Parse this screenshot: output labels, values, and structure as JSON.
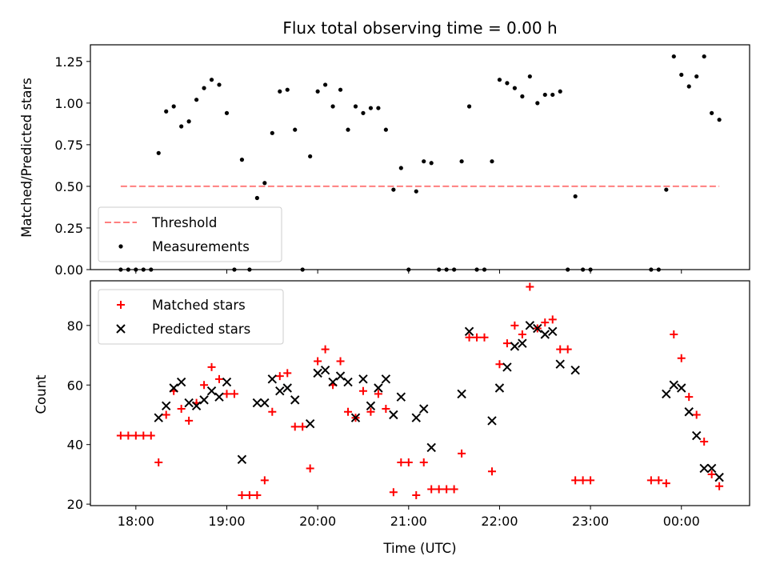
{
  "chart_data": [
    {
      "type": "scatter",
      "title": "Flux total observing time = 0.00 h",
      "xlabel": "",
      "ylabel": "Matched/Predicted stars",
      "ylim": [
        0,
        1.35
      ],
      "yticks": [
        0,
        0.25,
        0.5,
        0.75,
        1.0,
        1.25
      ],
      "ytick_labels": [
        "0.00",
        "0.25",
        "0.50",
        "0.75",
        "1.00",
        "1.25"
      ],
      "xlim": [
        "17:30",
        "00:45"
      ],
      "x_unit": "time of day (UTC), HH:MM",
      "xticks": [
        "18:00",
        "19:00",
        "20:00",
        "21:00",
        "22:00",
        "23:00",
        "00:00"
      ],
      "legend_position": "lower-left",
      "threshold": {
        "name": "Threshold",
        "value": 0.5,
        "x_range": [
          "17:50",
          "00:25"
        ],
        "color": "#ff7f7f",
        "style": "dashed"
      },
      "series": [
        {
          "name": "Measurements",
          "color": "#000000",
          "points": [
            [
              "17:50",
              0
            ],
            [
              "17:55",
              0
            ],
            [
              "18:00",
              0
            ],
            [
              "18:05",
              0
            ],
            [
              "18:10",
              0
            ],
            [
              "18:15",
              0.7
            ],
            [
              "18:20",
              0.95
            ],
            [
              "18:25",
              0.98
            ],
            [
              "18:30",
              0.86
            ],
            [
              "18:35",
              0.89
            ],
            [
              "18:40",
              1.02
            ],
            [
              "18:45",
              1.09
            ],
            [
              "18:50",
              1.14
            ],
            [
              "18:55",
              1.11
            ],
            [
              "19:00",
              0.94
            ],
            [
              "19:05",
              0
            ],
            [
              "19:10",
              0.66
            ],
            [
              "19:15",
              0
            ],
            [
              "19:20",
              0.43
            ],
            [
              "19:25",
              0.52
            ],
            [
              "19:30",
              0.82
            ],
            [
              "19:35",
              1.07
            ],
            [
              "19:40",
              1.08
            ],
            [
              "19:45",
              0.84
            ],
            [
              "19:50",
              0
            ],
            [
              "19:55",
              0.68
            ],
            [
              "20:00",
              1.07
            ],
            [
              "20:05",
              1.11
            ],
            [
              "20:10",
              0.98
            ],
            [
              "20:15",
              1.08
            ],
            [
              "20:20",
              0.84
            ],
            [
              "20:25",
              0.98
            ],
            [
              "20:30",
              0.94
            ],
            [
              "20:35",
              0.97
            ],
            [
              "20:40",
              0.97
            ],
            [
              "20:45",
              0.84
            ],
            [
              "20:50",
              0.48
            ],
            [
              "20:55",
              0.61
            ],
            [
              "21:00",
              0
            ],
            [
              "21:05",
              0.47
            ],
            [
              "21:10",
              0.65
            ],
            [
              "21:15",
              0.64
            ],
            [
              "21:20",
              0
            ],
            [
              "21:25",
              0
            ],
            [
              "21:30",
              0
            ],
            [
              "21:35",
              0.65
            ],
            [
              "21:40",
              0.98
            ],
            [
              "21:45",
              0
            ],
            [
              "21:50",
              0
            ],
            [
              "21:55",
              0.65
            ],
            [
              "22:00",
              1.14
            ],
            [
              "22:05",
              1.12
            ],
            [
              "22:10",
              1.09
            ],
            [
              "22:15",
              1.04
            ],
            [
              "22:20",
              1.16
            ],
            [
              "22:25",
              1.0
            ],
            [
              "22:30",
              1.05
            ],
            [
              "22:35",
              1.05
            ],
            [
              "22:40",
              1.07
            ],
            [
              "22:45",
              0
            ],
            [
              "22:50",
              0.44
            ],
            [
              "22:55",
              0
            ],
            [
              "23:00",
              0
            ],
            [
              "23:40",
              0
            ],
            [
              "23:45",
              0
            ],
            [
              "23:50",
              0.48
            ],
            [
              "23:55",
              1.28
            ],
            [
              "00:00",
              1.17
            ],
            [
              "00:05",
              1.1
            ],
            [
              "00:10",
              1.16
            ],
            [
              "00:15",
              1.28
            ],
            [
              "00:20",
              0.94
            ],
            [
              "00:25",
              0.9
            ]
          ]
        }
      ]
    },
    {
      "type": "scatter",
      "title": "",
      "xlabel": "Time (UTC)",
      "ylabel": "Count",
      "ylim": [
        19.5,
        95
      ],
      "yticks": [
        20,
        40,
        60,
        80
      ],
      "ytick_labels": [
        "20",
        "40",
        "60",
        "80"
      ],
      "xlim": [
        "17:30",
        "00:45"
      ],
      "x_unit": "time of day (UTC), HH:MM",
      "xticks": [
        "18:00",
        "19:00",
        "20:00",
        "21:00",
        "22:00",
        "23:00",
        "00:00"
      ],
      "xtick_labels": [
        "18:00",
        "19:00",
        "20:00",
        "21:00",
        "22:00",
        "23:00",
        "00:00"
      ],
      "legend_position": "upper-left",
      "series": [
        {
          "name": "Matched stars",
          "color": "#ff0000",
          "marker": "plus",
          "points": [
            [
              "17:50",
              43
            ],
            [
              "17:55",
              43
            ],
            [
              "18:00",
              43
            ],
            [
              "18:05",
              43
            ],
            [
              "18:10",
              43
            ],
            [
              "18:15",
              34
            ],
            [
              "18:20",
              50
            ],
            [
              "18:25",
              58
            ],
            [
              "18:30",
              52
            ],
            [
              "18:35",
              48
            ],
            [
              "18:40",
              54
            ],
            [
              "18:45",
              60
            ],
            [
              "18:50",
              66
            ],
            [
              "18:55",
              62
            ],
            [
              "19:00",
              57
            ],
            [
              "19:05",
              57
            ],
            [
              "19:10",
              23
            ],
            [
              "19:15",
              23
            ],
            [
              "19:20",
              23
            ],
            [
              "19:25",
              28
            ],
            [
              "19:30",
              51
            ],
            [
              "19:35",
              63
            ],
            [
              "19:40",
              64
            ],
            [
              "19:45",
              46
            ],
            [
              "19:50",
              46
            ],
            [
              "19:55",
              32
            ],
            [
              "20:00",
              68
            ],
            [
              "20:05",
              72
            ],
            [
              "20:10",
              60
            ],
            [
              "20:15",
              68
            ],
            [
              "20:20",
              51
            ],
            [
              "20:25",
              49
            ],
            [
              "20:30",
              58
            ],
            [
              "20:35",
              51
            ],
            [
              "20:40",
              57
            ],
            [
              "20:45",
              52
            ],
            [
              "20:50",
              24
            ],
            [
              "20:55",
              34
            ],
            [
              "21:00",
              34
            ],
            [
              "21:05",
              23
            ],
            [
              "21:10",
              34
            ],
            [
              "21:15",
              25
            ],
            [
              "21:20",
              25
            ],
            [
              "21:25",
              25
            ],
            [
              "21:30",
              25
            ],
            [
              "21:35",
              37
            ],
            [
              "21:40",
              76
            ],
            [
              "21:45",
              76
            ],
            [
              "21:50",
              76
            ],
            [
              "21:55",
              31
            ],
            [
              "22:00",
              67
            ],
            [
              "22:05",
              74
            ],
            [
              "22:10",
              80
            ],
            [
              "22:15",
              77
            ],
            [
              "22:20",
              93
            ],
            [
              "22:25",
              79
            ],
            [
              "22:30",
              81
            ],
            [
              "22:35",
              82
            ],
            [
              "22:40",
              72
            ],
            [
              "22:45",
              72
            ],
            [
              "22:50",
              28
            ],
            [
              "22:55",
              28
            ],
            [
              "23:00",
              28
            ],
            [
              "23:40",
              28
            ],
            [
              "23:45",
              28
            ],
            [
              "23:50",
              27
            ],
            [
              "23:55",
              77
            ],
            [
              "00:00",
              69
            ],
            [
              "00:05",
              56
            ],
            [
              "00:10",
              50
            ],
            [
              "00:15",
              41
            ],
            [
              "00:20",
              30
            ],
            [
              "00:25",
              26
            ]
          ]
        },
        {
          "name": "Predicted stars",
          "color": "#000000",
          "marker": "x",
          "points": [
            [
              "18:15",
              49
            ],
            [
              "18:20",
              53
            ],
            [
              "18:25",
              59
            ],
            [
              "18:30",
              61
            ],
            [
              "18:35",
              54
            ],
            [
              "18:40",
              53
            ],
            [
              "18:45",
              55
            ],
            [
              "18:50",
              58
            ],
            [
              "18:55",
              56
            ],
            [
              "19:00",
              61
            ],
            [
              "19:10",
              35
            ],
            [
              "19:20",
              54
            ],
            [
              "19:25",
              54
            ],
            [
              "19:30",
              62
            ],
            [
              "19:35",
              58
            ],
            [
              "19:40",
              59
            ],
            [
              "19:45",
              55
            ],
            [
              "19:55",
              47
            ],
            [
              "20:00",
              64
            ],
            [
              "20:05",
              65
            ],
            [
              "20:10",
              61
            ],
            [
              "20:15",
              63
            ],
            [
              "20:20",
              61
            ],
            [
              "20:25",
              49
            ],
            [
              "20:30",
              62
            ],
            [
              "20:35",
              53
            ],
            [
              "20:40",
              59
            ],
            [
              "20:45",
              62
            ],
            [
              "20:50",
              50
            ],
            [
              "20:55",
              56
            ],
            [
              "21:05",
              49
            ],
            [
              "21:10",
              52
            ],
            [
              "21:15",
              39
            ],
            [
              "21:35",
              57
            ],
            [
              "21:40",
              78
            ],
            [
              "21:55",
              48
            ],
            [
              "22:00",
              59
            ],
            [
              "22:05",
              66
            ],
            [
              "22:10",
              73
            ],
            [
              "22:15",
              74
            ],
            [
              "22:20",
              80
            ],
            [
              "22:25",
              79
            ],
            [
              "22:30",
              77
            ],
            [
              "22:35",
              78
            ],
            [
              "22:40",
              67
            ],
            [
              "22:50",
              65
            ],
            [
              "23:50",
              57
            ],
            [
              "23:55",
              60
            ],
            [
              "00:00",
              59
            ],
            [
              "00:05",
              51
            ],
            [
              "00:10",
              43
            ],
            [
              "00:15",
              32
            ],
            [
              "00:20",
              32
            ],
            [
              "00:25",
              29
            ]
          ]
        }
      ]
    }
  ]
}
